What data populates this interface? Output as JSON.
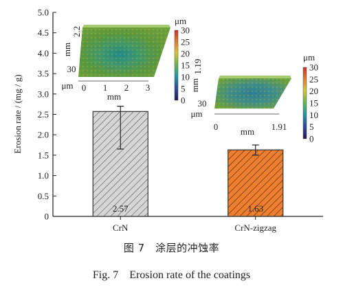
{
  "chart_data": {
    "type": "bar",
    "title": "",
    "xlabel": "",
    "ylabel": "Erosion rate / (mg / g)",
    "ylim": [
      0,
      5.0
    ],
    "yticks": [
      "0",
      "0.5",
      "1.0",
      "1.5",
      "2.0",
      "2.5",
      "3.0",
      "3.5",
      "4.0",
      "4.5",
      "5.0"
    ],
    "categories": [
      "CrN",
      "CrN-zigzag"
    ],
    "values": [
      2.57,
      1.63
    ],
    "value_labels": [
      "2.57",
      "1.63"
    ],
    "errors": [
      {
        "low": 1.65,
        "high": 2.7
      },
      {
        "low": 1.5,
        "high": 1.75
      }
    ],
    "grid": false,
    "bar_colors": [
      "#d0d0d0",
      "#ee7d2c"
    ],
    "hatch": "diagonal"
  },
  "insets": [
    {
      "name": "crn-topography",
      "axis_unit_left": "mm",
      "axis_value_left": "2.2",
      "axis_depth_value": "30",
      "axis_depth_unit": "μm",
      "x_ticks": [
        "0",
        "1",
        "2",
        "3"
      ],
      "x_unit": "mm",
      "colorbar_unit": "μm",
      "colorbar_ticks": [
        "30",
        "25",
        "20",
        "15",
        "10",
        "5",
        "0"
      ]
    },
    {
      "name": "crn-zigzag-topography",
      "axis_unit_left": "mm",
      "axis_value_left": "1.19",
      "axis_depth_value": "30",
      "axis_depth_unit": "μm",
      "x_ticks": [
        "0",
        "1.91"
      ],
      "x_unit": "mm",
      "colorbar_unit": "μm",
      "colorbar_ticks": [
        "30",
        "25",
        "20",
        "15",
        "10",
        "5",
        "0"
      ]
    }
  ],
  "caption": {
    "cn": "图 7　涂层的冲蚀率",
    "en": "Fig. 7　Erosion rate of the coatings"
  }
}
